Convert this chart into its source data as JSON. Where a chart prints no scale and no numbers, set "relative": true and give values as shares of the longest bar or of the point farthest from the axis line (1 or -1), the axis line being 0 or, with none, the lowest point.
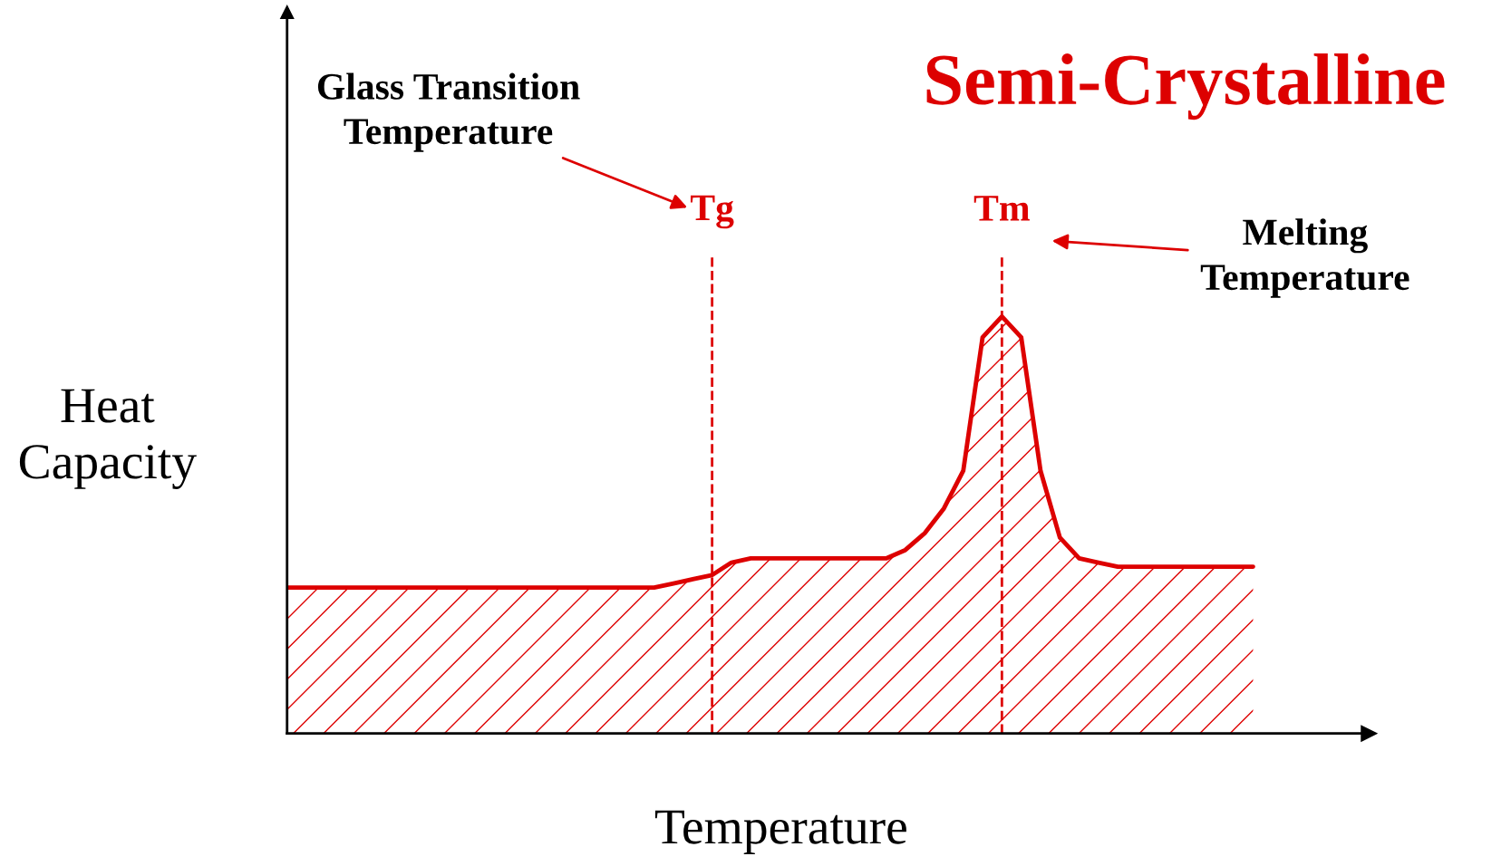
{
  "chart_data": {
    "type": "area",
    "relative": true,
    "title": "Semi-Crystalline",
    "xlabel": "Temperature",
    "ylabel": "Heat\nCapacity",
    "categories": [
      null,
      null,
      null,
      null,
      null,
      null,
      null,
      null,
      null,
      null,
      null,
      null,
      null,
      null,
      null,
      null,
      null,
      null,
      null,
      null,
      null,
      null,
      null,
      null,
      null,
      null,
      null,
      null,
      null,
      null,
      null,
      null,
      null,
      null,
      null,
      null,
      null,
      null,
      null,
      null,
      null,
      null,
      null,
      null,
      null,
      null,
      null,
      null,
      null,
      null,
      null,
      null,
      null,
      null,
      null,
      null,
      null
    ],
    "series": [
      {
        "color": "#dd0000",
        "values": [
          0.35,
          0.35,
          0.35,
          0.35,
          0.35,
          0.35,
          0.35,
          0.35,
          0.35,
          0.35,
          0.35,
          0.35,
          0.35,
          0.35,
          0.35,
          0.35,
          0.35,
          0.35,
          0.35,
          0.35,
          0.36,
          0.37,
          0.38,
          0.41,
          0.42,
          0.42,
          0.42,
          0.42,
          0.42,
          0.42,
          0.42,
          0.42,
          0.44,
          0.48,
          0.54,
          0.63,
          0.95,
          1.0,
          0.95,
          0.63,
          0.47,
          0.42,
          0.41,
          0.4,
          0.4,
          0.4,
          0.4,
          0.4,
          0.4,
          0.4,
          0.4,
          null,
          null,
          null,
          null,
          null,
          null
        ]
      }
    ],
    "annotations": [
      "Glass Transition\nTemperature",
      "Tg",
      "Tm",
      "Melting\nTemperature"
    ],
    "line_style": "solid",
    "marker": "none",
    "grid": false,
    "legend": false
  }
}
